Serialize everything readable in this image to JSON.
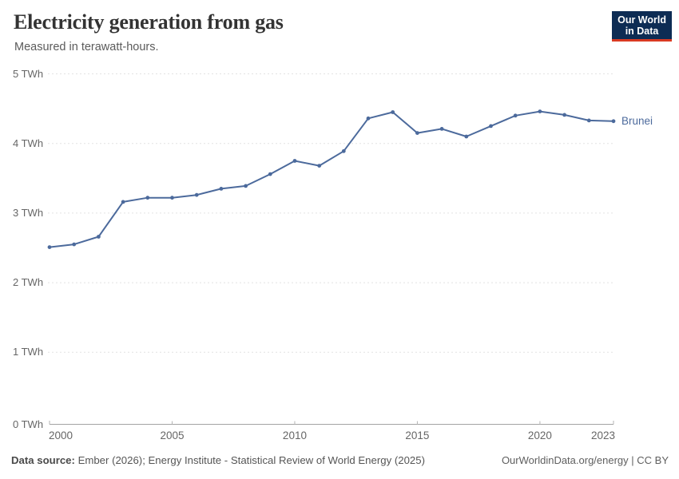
{
  "header": {
    "title": "Electricity generation from gas",
    "subtitle": "Measured in terawatt-hours."
  },
  "logo": {
    "line1": "Our World",
    "line2": "in Data"
  },
  "chart_data": {
    "type": "line",
    "title": "Electricity generation from gas",
    "ylabel": "terawatt-hours",
    "unit": "TWh",
    "grid": true,
    "legend_position": "inline-end-label",
    "ylim": [
      0,
      5
    ],
    "xlim": [
      2000,
      2023
    ],
    "x": [
      2000,
      2001,
      2002,
      2003,
      2004,
      2005,
      2006,
      2007,
      2008,
      2009,
      2010,
      2011,
      2012,
      2013,
      2014,
      2015,
      2016,
      2017,
      2018,
      2019,
      2020,
      2021,
      2022,
      2023
    ],
    "series": [
      {
        "name": "Brunei",
        "values": [
          2.51,
          2.55,
          2.66,
          3.16,
          3.22,
          3.22,
          3.26,
          3.35,
          3.39,
          3.56,
          3.75,
          3.68,
          3.89,
          4.36,
          4.45,
          4.15,
          4.21,
          4.1,
          4.25,
          4.4,
          4.46,
          4.41,
          4.33,
          4.32
        ]
      }
    ],
    "yticks": [
      {
        "value": 0,
        "label": "0 TWh"
      },
      {
        "value": 1,
        "label": "1 TWh"
      },
      {
        "value": 2,
        "label": "2 TWh"
      },
      {
        "value": 3,
        "label": "3 TWh"
      },
      {
        "value": 4,
        "label": "4 TWh"
      },
      {
        "value": 5,
        "label": "5 TWh"
      }
    ],
    "xticks": [
      {
        "year": 2000,
        "label": "2000"
      },
      {
        "year": 2005,
        "label": "2005"
      },
      {
        "year": 2010,
        "label": "2010"
      },
      {
        "year": 2015,
        "label": "2015"
      },
      {
        "year": 2020,
        "label": "2020"
      },
      {
        "year": 2023,
        "label": "2023"
      }
    ]
  },
  "footer": {
    "source_label": "Data source:",
    "source_text": "Ember (2026); Energy Institute - Statistical Review of World Energy (2025)",
    "credit": "OurWorldinData.org/energy | CC BY"
  },
  "colors": {
    "line": "#4c6a9c",
    "grid": "#e2e2e2",
    "axis": "#a3a3a3",
    "tick_mark": "#b5b5b5",
    "logo_bg": "#0d2c54",
    "logo_red": "#d93a22"
  }
}
